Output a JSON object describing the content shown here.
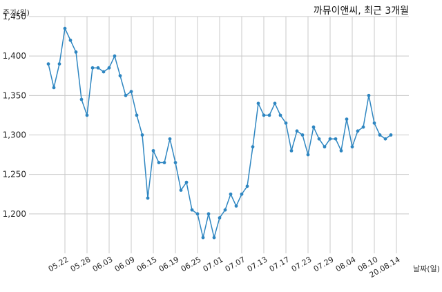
{
  "chart_data": {
    "type": "line",
    "title": "까뮤이앤씨, 최근 3개월",
    "ylabel": "주가(원)",
    "xlabel": "날짜(일)",
    "ylim": [
      1150,
      1450
    ],
    "yticks": [
      1200,
      1250,
      1300,
      1350,
      1400,
      1450
    ],
    "ytick_labels": [
      "1,200",
      "1,250",
      "1,300",
      "1,350",
      "1,400",
      "1,450"
    ],
    "xtick_labels": [
      "05.22",
      "05.28",
      "06.03",
      "06.09",
      "06.15",
      "06.19",
      "06.25",
      "07.01",
      "07.07",
      "07.13",
      "07.17",
      "07.23",
      "07.29",
      "08.04",
      "08.10",
      "20.08.14"
    ],
    "xtick_index": [
      3,
      7,
      11,
      15,
      19,
      23,
      27,
      31,
      35,
      39,
      43,
      47,
      51,
      55,
      59,
      63
    ],
    "grid": true,
    "series": [
      {
        "color": "#2e86c1",
        "values": [
          1390,
          1360,
          1390,
          1435,
          1420,
          1405,
          1345,
          1325,
          1385,
          1385,
          1380,
          1385,
          1400,
          1375,
          1350,
          1355,
          1325,
          1300,
          1220,
          1280,
          1265,
          1265,
          1295,
          1265,
          1230,
          1240,
          1205,
          1200,
          1170,
          1200,
          1170,
          1195,
          1205,
          1225,
          1210,
          1225,
          1235,
          1285,
          1340,
          1325,
          1325,
          1340,
          1325,
          1315,
          1280,
          1305,
          1300,
          1275,
          1310,
          1295,
          1285,
          1295,
          1295,
          1280,
          1320,
          1285,
          1305,
          1310,
          1350,
          1315,
          1300,
          1295,
          1300
        ]
      }
    ]
  }
}
